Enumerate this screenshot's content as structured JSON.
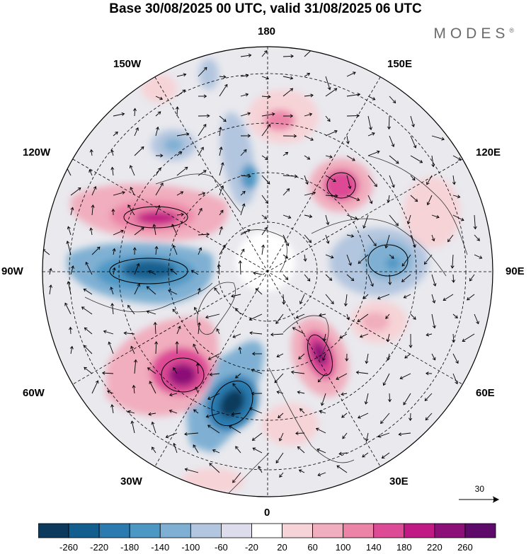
{
  "title": "Base 30/08/2025 00 UTC, valid 31/08/2025 06 UTC",
  "brand": "MODES",
  "brand_mark": "®",
  "longitude_labels": {
    "n180": "180",
    "w150": "150W",
    "e150": "150E",
    "w120": "120W",
    "e120": "120E",
    "w90": "90W",
    "e90": "90E",
    "w60": "60W",
    "e60": "60E",
    "w30": "30W",
    "e30": "30E",
    "s0": "0"
  },
  "reference_vector": "30",
  "colorbar": {
    "ticks": [
      "-260",
      "-220",
      "-180",
      "-140",
      "-100",
      "-60",
      "-20",
      "20",
      "60",
      "100",
      "140",
      "180",
      "220",
      "260"
    ],
    "colors": [
      "#0b3a5c",
      "#125e8e",
      "#2b7bb0",
      "#4d97c5",
      "#7fb0d3",
      "#b3c6df",
      "#dcdcec",
      "#ffffff",
      "#f6d3d7",
      "#f1aebe",
      "#ec84a8",
      "#dd4a95",
      "#c11a84",
      "#8c1077",
      "#5e0a6a"
    ]
  },
  "anomalies": [
    {
      "id": "neg-atlantic",
      "sign": "negative",
      "peak": -260
    },
    {
      "id": "pos-greenland-south",
      "sign": "positive",
      "peak": 220
    },
    {
      "id": "neg-canada-hudson",
      "sign": "negative",
      "peak": -200
    },
    {
      "id": "pos-alaska-south",
      "sign": "positive",
      "peak": 200
    },
    {
      "id": "pos-scandinavia-east",
      "sign": "positive",
      "peak": 220
    },
    {
      "id": "neg-siberia-west",
      "sign": "negative",
      "peak": -140
    },
    {
      "id": "pos-siberia-east",
      "sign": "positive",
      "peak": 180
    },
    {
      "id": "neg-bering",
      "sign": "negative",
      "peak": -140
    },
    {
      "id": "pos-pacific-north",
      "sign": "positive",
      "peak": 140
    },
    {
      "id": "pos-central-asia",
      "sign": "positive",
      "peak": 140
    }
  ]
}
